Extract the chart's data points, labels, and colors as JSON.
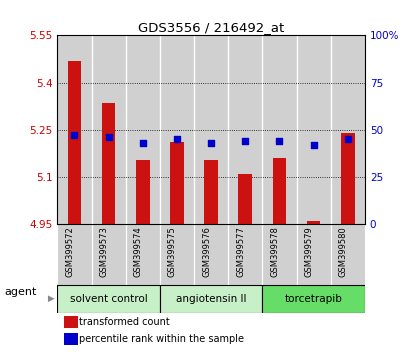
{
  "title": "GDS3556 / 216492_at",
  "samples": [
    "GSM399572",
    "GSM399573",
    "GSM399574",
    "GSM399575",
    "GSM399576",
    "GSM399577",
    "GSM399578",
    "GSM399579",
    "GSM399580"
  ],
  "red_values": [
    5.47,
    5.335,
    5.155,
    5.21,
    5.155,
    5.11,
    5.16,
    4.96,
    5.24
  ],
  "blue_values": [
    47,
    46,
    43,
    45,
    43,
    44,
    44,
    42,
    45
  ],
  "ylim_left": [
    4.95,
    5.55
  ],
  "ylim_right": [
    0,
    100
  ],
  "yticks_left": [
    4.95,
    5.1,
    5.25,
    5.4,
    5.55
  ],
  "yticks_right": [
    0,
    25,
    50,
    75,
    100
  ],
  "ytick_labels_left": [
    "4.95",
    "5.1",
    "5.25",
    "5.4",
    "5.55"
  ],
  "ytick_labels_right": [
    "0",
    "25",
    "50",
    "75",
    "100%"
  ],
  "groups": [
    {
      "label": "solvent control",
      "indices": [
        0,
        1,
        2
      ],
      "color": "#c8f0c8"
    },
    {
      "label": "angiotensin II",
      "indices": [
        3,
        4,
        5
      ],
      "color": "#c8f0c8"
    },
    {
      "label": "torcetrapib",
      "indices": [
        6,
        7,
        8
      ],
      "color": "#66dd66"
    }
  ],
  "agent_label": "agent",
  "bar_color_red": "#cc1111",
  "dot_color_blue": "#0000cc",
  "background_color": "#ffffff",
  "bar_bg_color": "#d0d0d0",
  "left_axis_color": "#cc0000",
  "right_axis_color": "#0000cc",
  "figsize": [
    4.1,
    3.54
  ],
  "dpi": 100
}
